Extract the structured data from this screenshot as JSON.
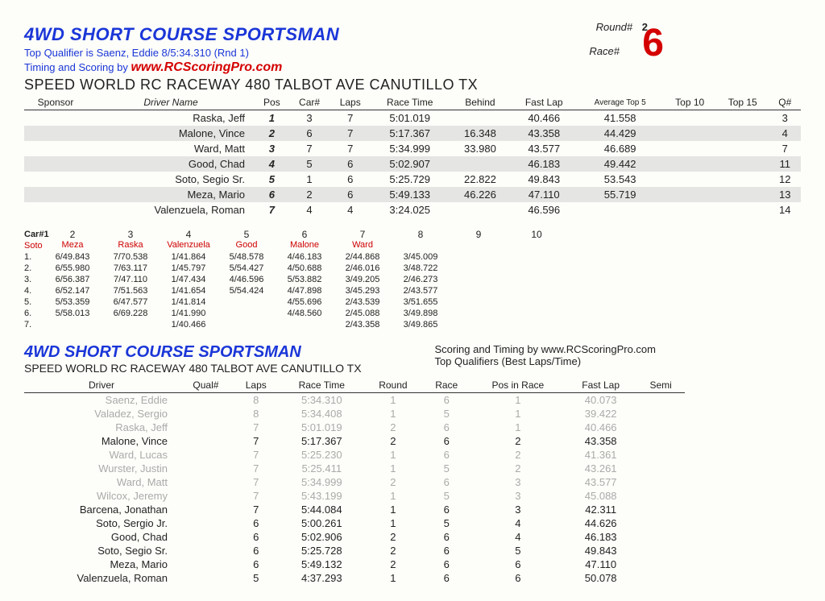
{
  "header": {
    "title": "4WD SHORT COURSE SPORTSMAN",
    "top_qualifier": "Top Qualifier is Saenz, Eddie 8/5:34.310 (Rnd 1)",
    "timing_prefix": "Timing and Scoring by ",
    "timing_brand": "www.RCScoringPro.com",
    "venue": "SPEED WORLD RC RACEWAY 480 TALBOT AVE CANUTILLO TX",
    "round_label": "Round#",
    "round_value": "2",
    "race_label": "Race#",
    "race_value": "6"
  },
  "results": {
    "columns": [
      "Sponsor",
      "Driver Name",
      "Pos",
      "Car#",
      "Laps",
      "Race Time",
      "Behind",
      "Fast Lap",
      "Average Top 5",
      "Top 10",
      "Top 15",
      "Q#"
    ],
    "rows": [
      {
        "driver": "Raska, Jeff",
        "pos": "1",
        "car": "3",
        "laps": "7",
        "time": "5:01.019",
        "behind": "",
        "fast": "40.466",
        "avg": "41.558",
        "t10": "",
        "t15": "",
        "q": "3",
        "shade": false
      },
      {
        "driver": "Malone, Vince",
        "pos": "2",
        "car": "6",
        "laps": "7",
        "time": "5:17.367",
        "behind": "16.348",
        "fast": "43.358",
        "avg": "44.429",
        "t10": "",
        "t15": "",
        "q": "4",
        "shade": true
      },
      {
        "driver": "Ward, Matt",
        "pos": "3",
        "car": "7",
        "laps": "7",
        "time": "5:34.999",
        "behind": "33.980",
        "fast": "43.577",
        "avg": "46.689",
        "t10": "",
        "t15": "",
        "q": "7",
        "shade": false
      },
      {
        "driver": "Good, Chad",
        "pos": "4",
        "car": "5",
        "laps": "6",
        "time": "5:02.907",
        "behind": "",
        "fast": "46.183",
        "avg": "49.442",
        "t10": "",
        "t15": "",
        "q": "11",
        "shade": true
      },
      {
        "driver": "Soto, Segio Sr.",
        "pos": "5",
        "car": "1",
        "laps": "6",
        "time": "5:25.729",
        "behind": "22.822",
        "fast": "49.843",
        "avg": "53.543",
        "t10": "",
        "t15": "",
        "q": "12",
        "shade": false
      },
      {
        "driver": "Meza, Mario",
        "pos": "6",
        "car": "2",
        "laps": "6",
        "time": "5:49.133",
        "behind": "46.226",
        "fast": "47.110",
        "avg": "55.719",
        "t10": "",
        "t15": "",
        "q": "13",
        "shade": true
      },
      {
        "driver": "Valenzuela, Roman",
        "pos": "7",
        "car": "4",
        "laps": "4",
        "time": "3:24.025",
        "behind": "",
        "fast": "46.596",
        "avg": "",
        "t10": "",
        "t15": "",
        "q": "14",
        "shade": false
      }
    ]
  },
  "lapmatrix": {
    "carhdr_label": "Car#",
    "cars": [
      {
        "num": "1",
        "name": "Soto"
      },
      {
        "num": "2",
        "name": "Meza"
      },
      {
        "num": "3",
        "name": "Raska"
      },
      {
        "num": "4",
        "name": "Valenzuela"
      },
      {
        "num": "5",
        "name": "Good"
      },
      {
        "num": "6",
        "name": "Malone"
      },
      {
        "num": "7",
        "name": "Ward"
      },
      {
        "num": "8",
        "name": ""
      },
      {
        "num": "9",
        "name": ""
      },
      {
        "num": "10",
        "name": ""
      }
    ],
    "rows": [
      [
        "6/49.843",
        "7/70.538",
        "1/41.864",
        "5/48.578",
        "4/46.183",
        "2/44.868",
        "3/45.009",
        "",
        "",
        ""
      ],
      [
        "6/55.980",
        "7/63.117",
        "1/45.797",
        "5/54.427",
        "4/50.688",
        "2/46.016",
        "3/48.722",
        "",
        "",
        ""
      ],
      [
        "6/56.387",
        "7/47.110",
        "1/47.434",
        "4/46.596",
        "5/53.882",
        "3/49.205",
        "2/46.273",
        "",
        "",
        ""
      ],
      [
        "6/52.147",
        "7/51.563",
        "1/41.654",
        "5/54.424",
        "4/47.898",
        "3/45.293",
        "2/43.577",
        "",
        "",
        ""
      ],
      [
        "5/53.359",
        "6/47.577",
        "1/41.814",
        "",
        "4/55.696",
        "2/43.539",
        "3/51.655",
        "",
        "",
        ""
      ],
      [
        "5/58.013",
        "6/69.228",
        "1/41.990",
        "",
        "4/48.560",
        "2/45.088",
        "3/49.898",
        "",
        "",
        ""
      ],
      [
        "",
        "",
        "1/40.466",
        "",
        "",
        "2/43.358",
        "3/49.865",
        "",
        "",
        ""
      ]
    ]
  },
  "section2": {
    "title": "4WD SHORT COURSE SPORTSMAN",
    "venue": "SPEED WORLD RC RACEWAY 480 TALBOT AVE CANUTILLO TX",
    "right1": "Scoring and Timing by www.RCScoringPro.com",
    "right2": "Top Qualifiers (Best Laps/Time)",
    "columns": [
      "Driver",
      "Qual#",
      "Laps",
      "Race Time",
      "Round",
      "Race",
      "Pos in Race",
      "Fast Lap",
      "Semi"
    ],
    "rows": [
      {
        "d": "Saenz, Eddie",
        "q": "",
        "l": "8",
        "rt": "5:34.310",
        "rd": "1",
        "rc": "6",
        "p": "1",
        "f": "40.073",
        "s": "",
        "muted": true
      },
      {
        "d": "Valadez, Sergio",
        "q": "",
        "l": "8",
        "rt": "5:34.408",
        "rd": "1",
        "rc": "5",
        "p": "1",
        "f": "39.422",
        "s": "",
        "muted": true
      },
      {
        "d": "Raska, Jeff",
        "q": "",
        "l": "7",
        "rt": "5:01.019",
        "rd": "2",
        "rc": "6",
        "p": "1",
        "f": "40.466",
        "s": "",
        "muted": true
      },
      {
        "d": "Malone, Vince",
        "q": "",
        "l": "7",
        "rt": "5:17.367",
        "rd": "2",
        "rc": "6",
        "p": "2",
        "f": "43.358",
        "s": "",
        "muted": false
      },
      {
        "d": "Ward, Lucas",
        "q": "",
        "l": "7",
        "rt": "5:25.230",
        "rd": "1",
        "rc": "6",
        "p": "2",
        "f": "41.361",
        "s": "",
        "muted": true
      },
      {
        "d": "Wurster, Justin",
        "q": "",
        "l": "7",
        "rt": "5:25.411",
        "rd": "1",
        "rc": "5",
        "p": "2",
        "f": "43.261",
        "s": "",
        "muted": true
      },
      {
        "d": "Ward, Matt",
        "q": "",
        "l": "7",
        "rt": "5:34.999",
        "rd": "2",
        "rc": "6",
        "p": "3",
        "f": "43.577",
        "s": "",
        "muted": true
      },
      {
        "d": "Wilcox, Jeremy",
        "q": "",
        "l": "7",
        "rt": "5:43.199",
        "rd": "1",
        "rc": "5",
        "p": "3",
        "f": "45.088",
        "s": "",
        "muted": true
      },
      {
        "d": "Barcena, Jonathan",
        "q": "",
        "l": "7",
        "rt": "5:44.084",
        "rd": "1",
        "rc": "6",
        "p": "3",
        "f": "42.311",
        "s": "",
        "muted": false
      },
      {
        "d": "Soto, Sergio Jr.",
        "q": "",
        "l": "6",
        "rt": "5:00.261",
        "rd": "1",
        "rc": "5",
        "p": "4",
        "f": "44.626",
        "s": "",
        "muted": false
      },
      {
        "d": "Good, Chad",
        "q": "",
        "l": "6",
        "rt": "5:02.906",
        "rd": "2",
        "rc": "6",
        "p": "4",
        "f": "46.183",
        "s": "",
        "muted": false
      },
      {
        "d": "Soto, Segio Sr.",
        "q": "",
        "l": "6",
        "rt": "5:25.728",
        "rd": "2",
        "rc": "6",
        "p": "5",
        "f": "49.843",
        "s": "",
        "muted": false
      },
      {
        "d": "Meza, Mario",
        "q": "",
        "l": "6",
        "rt": "5:49.132",
        "rd": "2",
        "rc": "6",
        "p": "6",
        "f": "47.110",
        "s": "",
        "muted": false
      },
      {
        "d": "Valenzuela, Roman",
        "q": "",
        "l": "5",
        "rt": "4:37.293",
        "rd": "1",
        "rc": "6",
        "p": "6",
        "f": "50.078",
        "s": "",
        "muted": false
      }
    ]
  }
}
